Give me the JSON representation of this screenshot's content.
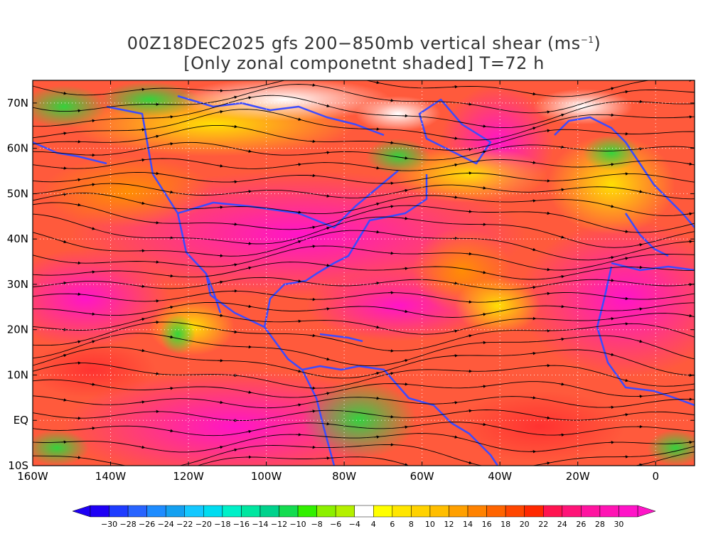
{
  "title": {
    "line1_prefix": "00Z18DEC2025 gfs 200−850mb vertical shear (ms",
    "line1_sup": "−1",
    "line1_suffix": ")",
    "line2": "[Only zonal componetnt shaded] T=72 h"
  },
  "map": {
    "lon_range": [
      -160,
      10
    ],
    "lat_range": [
      -10,
      75
    ],
    "lon_ticks": [
      {
        "value": -160,
        "label": "160W"
      },
      {
        "value": -140,
        "label": "140W"
      },
      {
        "value": -120,
        "label": "120W"
      },
      {
        "value": -100,
        "label": "100W"
      },
      {
        "value": -80,
        "label": "80W"
      },
      {
        "value": -60,
        "label": "60W"
      },
      {
        "value": -40,
        "label": "40W"
      },
      {
        "value": -20,
        "label": "20W"
      },
      {
        "value": 0,
        "label": "0"
      }
    ],
    "lat_ticks": [
      {
        "value": -10,
        "label": "10S"
      },
      {
        "value": 0,
        "label": "EQ"
      },
      {
        "value": 10,
        "label": "10N"
      },
      {
        "value": 20,
        "label": "20N"
      },
      {
        "value": 30,
        "label": "30N"
      },
      {
        "value": 40,
        "label": "40N"
      },
      {
        "value": 50,
        "label": "50N"
      },
      {
        "value": 60,
        "label": "60N"
      },
      {
        "value": 70,
        "label": "70N"
      }
    ],
    "gridlines": "dotted",
    "coastline_color": "#3b4bff",
    "streamline_color": "#000000"
  },
  "colorbar": {
    "labels": [
      "−30",
      "−28",
      "−26",
      "−24",
      "−22",
      "−20",
      "−18",
      "−16",
      "−14",
      "−12",
      "−10",
      "−8",
      "−6",
      "−4",
      "4",
      "6",
      "8",
      "10",
      "12",
      "14",
      "16",
      "18",
      "20",
      "22",
      "24",
      "26",
      "28",
      "30"
    ],
    "colors": [
      "#1e00f5",
      "#1e3cff",
      "#2864ff",
      "#1e8cff",
      "#14a0f0",
      "#14c8ff",
      "#00dcf0",
      "#00f0c8",
      "#00e6a0",
      "#00d28c",
      "#14dc50",
      "#32f000",
      "#8cf000",
      "#b4f000",
      "#ffffff",
      "#ffff00",
      "#ffe600",
      "#ffd200",
      "#ffbe00",
      "#ffa000",
      "#ff8200",
      "#ff6400",
      "#ff4600",
      "#ff2800",
      "#ff1450",
      "#ff1478",
      "#ff14a0",
      "#ff14b4",
      "#ff14c8"
    ]
  }
}
